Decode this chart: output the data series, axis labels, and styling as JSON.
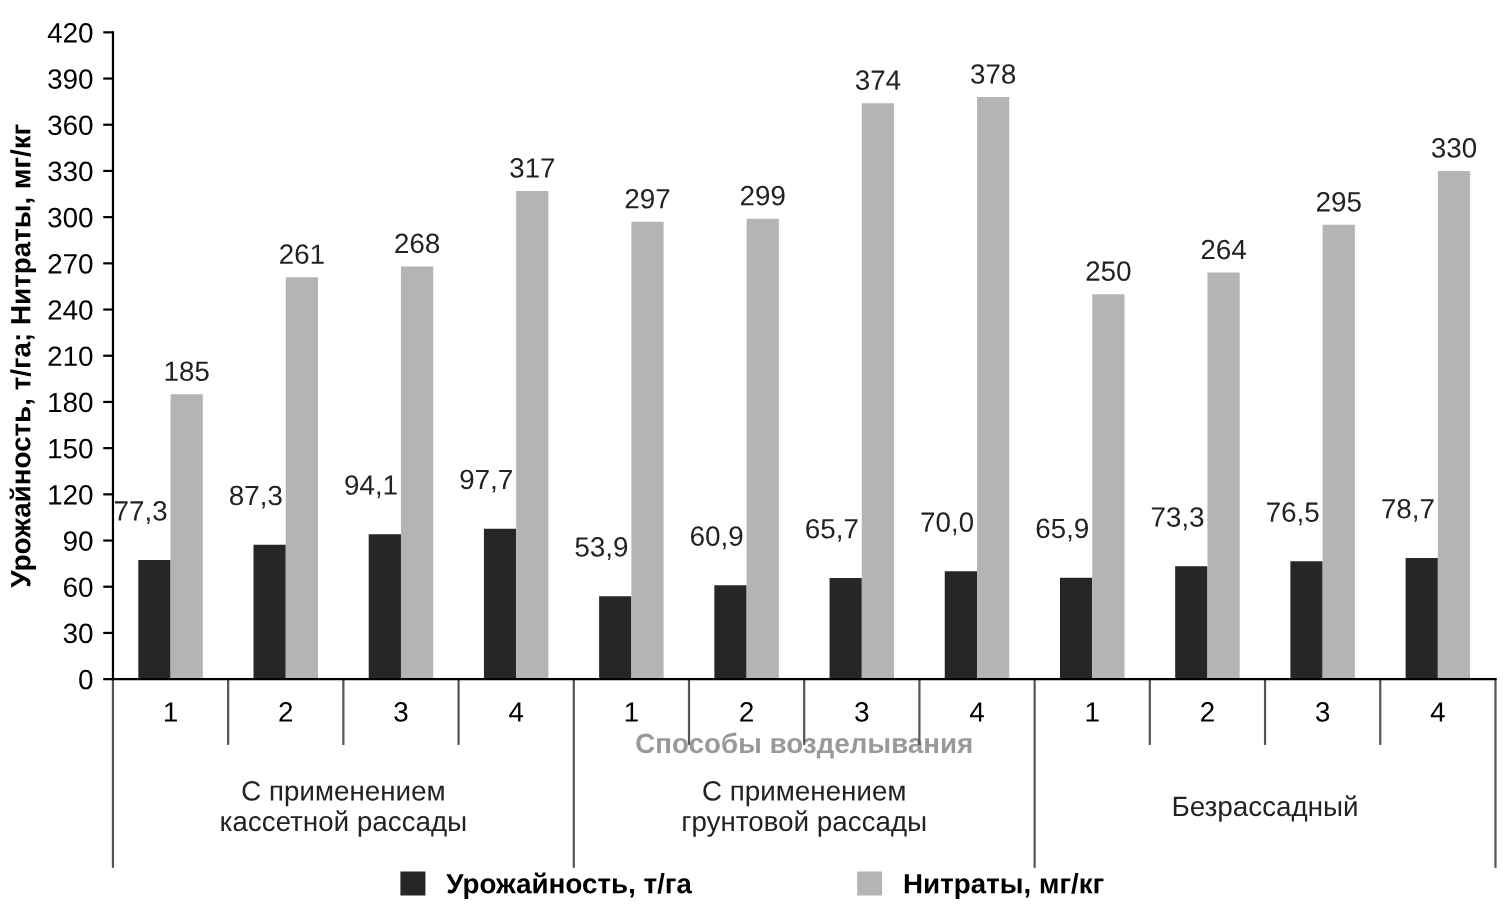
{
  "chart_data": {
    "type": "bar",
    "xlabel": "Способы возделывания",
    "ylabel": "Урожайность, т/га; Нитраты, мг/кг",
    "categories": [
      "1",
      "2",
      "3",
      "4",
      "1",
      "2",
      "3",
      "4",
      "1",
      "2",
      "3",
      "4"
    ],
    "series": [
      {
        "name": "Урожайность, т/га",
        "color": "#262626",
        "values": [
          77.3,
          87.3,
          94.1,
          97.7,
          53.9,
          60.9,
          65.7,
          70.0,
          65.9,
          73.3,
          76.5,
          78.7
        ],
        "value_labels": [
          "77,3",
          "87,3",
          "94,1",
          "97,7",
          "53,9",
          "60,9",
          "65,7",
          "70,0",
          "65,9",
          "73,3",
          "76,5",
          "78,7"
        ]
      },
      {
        "name": "Нитраты, мг/кг",
        "color": "#b4b4b4",
        "values": [
          185,
          261,
          268,
          317,
          297,
          299,
          374,
          378,
          250,
          264,
          295,
          330
        ],
        "value_labels": [
          "185",
          "261",
          "268",
          "317",
          "297",
          "299",
          "374",
          "378",
          "250",
          "264",
          "295",
          "330"
        ]
      }
    ],
    "annotations": [
      "С применением\nкассетной рассады",
      "С применением\nгрунтовой рассады",
      "Безрассадный"
    ],
    "ylim": [
      0,
      420
    ],
    "yticks": [
      0,
      30,
      60,
      90,
      120,
      150,
      180,
      210,
      240,
      270,
      300,
      330,
      360,
      390,
      420
    ],
    "grid": false,
    "legend": "bottom"
  }
}
